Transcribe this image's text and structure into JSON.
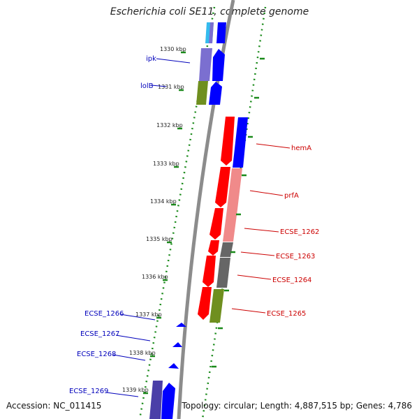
{
  "title": "Escherichia coli SE11, complete genome",
  "accession": "Accession: NC_011415",
  "summary": "Topology: circular; Length: 4,887,515 bp; Genes: 4,786",
  "scale_labels": [
    "1330 kbp",
    "1331 kbp",
    "1332 kbp",
    "1333 kbp",
    "1334 kbp",
    "1335 kbp",
    "1336 kbp",
    "1337 kbp",
    "1338 kbp",
    "1339 kbp"
  ],
  "genes_left": [
    {
      "name": "ipk",
      "color": "#0000bb"
    },
    {
      "name": "lolB",
      "color": "#0000bb"
    },
    {
      "name": "ECSE_1266",
      "color": "#0000bb"
    },
    {
      "name": "ECSE_1267",
      "color": "#0000bb"
    },
    {
      "name": "ECSE_1268",
      "color": "#0000bb"
    },
    {
      "name": "ECSE_1269",
      "color": "#0000bb"
    }
  ],
  "genes_right": [
    {
      "name": "hemA",
      "color": "#cc0000"
    },
    {
      "name": "prfA",
      "color": "#cc0000"
    },
    {
      "name": "ECSE_1262",
      "color": "#cc0000"
    },
    {
      "name": "ECSE_1263",
      "color": "#cc0000"
    },
    {
      "name": "ECSE_1264",
      "color": "#cc0000"
    },
    {
      "name": "ECSE_1265",
      "color": "#cc0000"
    }
  ],
  "colors": {
    "backbone": "#8c8c8c",
    "forward_strand": "#0000ff",
    "reverse_strand": "#ff0000",
    "dotted_guide": "#1a8a1a",
    "cog_purple": "#7b6fd0",
    "cog_olive": "#6f8f1f",
    "cog_pink": "#f08a8a",
    "cog_gray": "#666666",
    "cog_cyan": "#33bbee"
  }
}
